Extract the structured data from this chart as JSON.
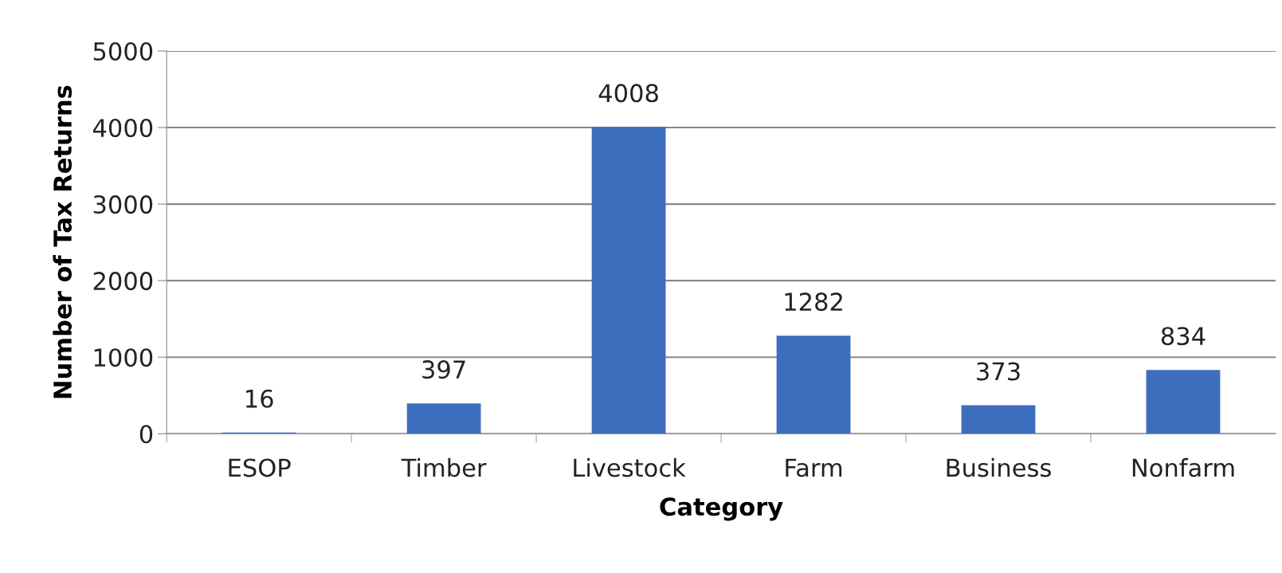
{
  "chart_data": {
    "type": "bar",
    "xlabel": "Category",
    "ylabel": "Number of Tax Returns",
    "categories": [
      "ESOP",
      "Timber",
      "Livestock",
      "Farm",
      "Business",
      "Nonfarm"
    ],
    "values": [
      16,
      397,
      4008,
      1282,
      373,
      834
    ],
    "color": "#3c6ebd",
    "ylim": [
      0,
      5000
    ],
    "yticks": [
      0,
      1000,
      2000,
      3000,
      4000,
      5000
    ],
    "grid": "y",
    "data_labels": true,
    "legend": false
  }
}
